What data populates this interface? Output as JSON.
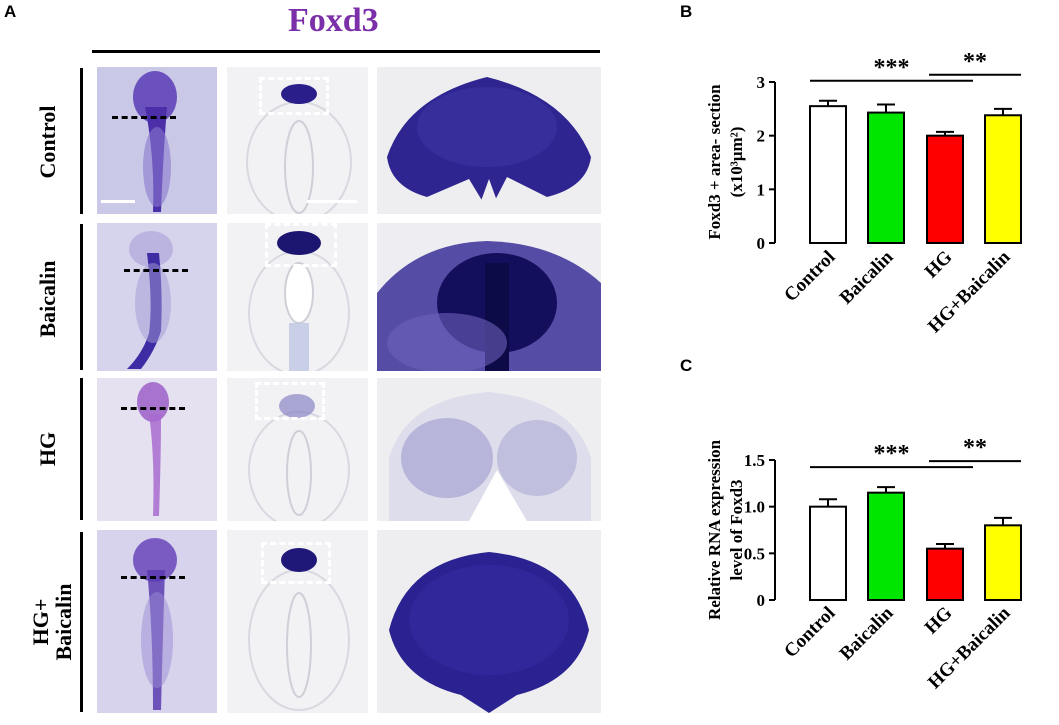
{
  "panel_a": {
    "letter": "A",
    "title": "Foxd3",
    "title_color": "#7b2fa8",
    "rows": [
      "Control",
      "Baicalin",
      "HG",
      "HG+\nBaicalin"
    ]
  },
  "chart_data": [
    {
      "panel": "B",
      "type": "bar",
      "categories": [
        "Control",
        "Baicalin",
        "HG",
        "HG+Baicalin"
      ],
      "values": [
        2.55,
        2.43,
        2.0,
        2.38
      ],
      "errors": [
        0.1,
        0.15,
        0.07,
        0.12
      ],
      "colors": [
        "#ffffff",
        "#00e600",
        "#ff0000",
        "#ffff00"
      ],
      "ylabel_lines": [
        "Foxd3 + area- section",
        "(x10³μm²)"
      ],
      "ylim": [
        0,
        3
      ],
      "yticks": [
        "0",
        "1",
        "2",
        "3"
      ],
      "significance": [
        {
          "from": 0,
          "to": 2,
          "label": "***"
        },
        {
          "from": 2,
          "to": 3,
          "label": "**"
        }
      ]
    },
    {
      "panel": "C",
      "type": "bar",
      "categories": [
        "Control",
        "Baicalin",
        "HG",
        "HG+Baicalin"
      ],
      "values": [
        1.0,
        1.15,
        0.55,
        0.8
      ],
      "errors": [
        0.08,
        0.06,
        0.05,
        0.08
      ],
      "colors": [
        "#ffffff",
        "#00e600",
        "#ff0000",
        "#ffff00"
      ],
      "ylabel_lines": [
        "Relative RNA expression",
        "level of Foxd3"
      ],
      "ylim": [
        0,
        1.5
      ],
      "yticks": [
        "0",
        "0.5",
        "1.0",
        "1.5"
      ],
      "significance": [
        {
          "from": 0,
          "to": 2,
          "label": "***"
        },
        {
          "from": 2,
          "to": 3,
          "label": "**"
        }
      ]
    }
  ]
}
